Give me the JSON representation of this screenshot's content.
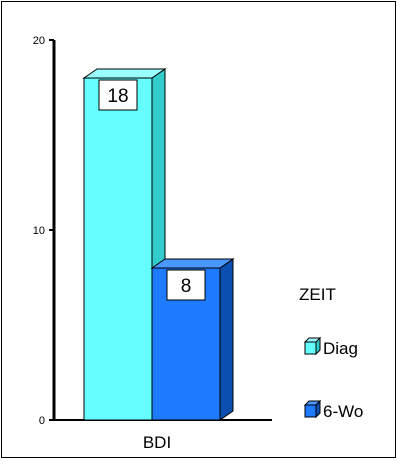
{
  "chart_data": {
    "type": "bar",
    "categories": [
      "BDI"
    ],
    "series": [
      {
        "name": "Diag",
        "values": [
          18
        ]
      },
      {
        "name": "6-Wo",
        "values": [
          8
        ]
      }
    ],
    "ylim": [
      0,
      20
    ],
    "yticks": [
      0,
      10,
      20
    ],
    "grid": false,
    "legend": {
      "title": "ZEIT",
      "placement": "right"
    },
    "data_labels": true,
    "style": "3d-bar"
  },
  "colors": {
    "series": [
      "#66FFFF",
      "#1E7BFF"
    ],
    "series_dark": [
      "#33CCCC",
      "#0A4FB0"
    ],
    "series_top": [
      "#99FFFF",
      "#4A98FF"
    ]
  }
}
